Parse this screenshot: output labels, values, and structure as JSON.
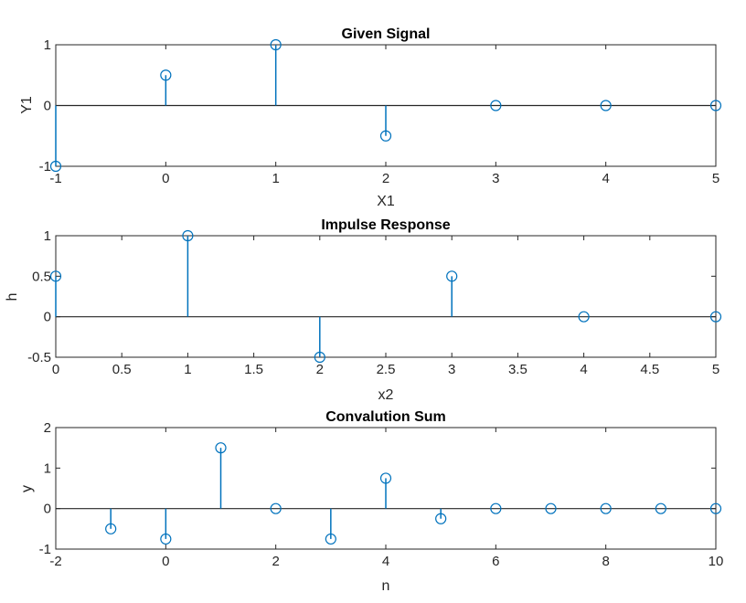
{
  "chart_data": [
    {
      "type": "stem",
      "title": "Given Signal",
      "xlabel": "X1",
      "ylabel": "Y1",
      "xlim": [
        -1,
        5
      ],
      "ylim": [
        -1,
        1
      ],
      "xticks": [
        "-1",
        "0",
        "1",
        "2",
        "3",
        "4",
        "5"
      ],
      "yticks": [
        "-1",
        "0",
        "1"
      ],
      "x": [
        -1,
        0,
        1,
        2,
        3,
        4,
        5
      ],
      "y": [
        -1,
        0.5,
        1,
        -0.5,
        0,
        0,
        0
      ],
      "color": "#0072BD"
    },
    {
      "type": "stem",
      "title": "Impulse Response",
      "xlabel": "x2",
      "ylabel": "h",
      "xlim": [
        0,
        5
      ],
      "ylim": [
        -0.5,
        1
      ],
      "xticks": [
        "0",
        "0.5",
        "1",
        "1.5",
        "2",
        "2.5",
        "3",
        "3.5",
        "4",
        "4.5",
        "5"
      ],
      "yticks": [
        "-0.5",
        "0",
        "0.5",
        "1"
      ],
      "x": [
        0,
        1,
        2,
        3,
        4,
        5
      ],
      "y": [
        0.5,
        1,
        -0.5,
        0.5,
        0,
        0
      ],
      "color": "#0072BD"
    },
    {
      "type": "stem",
      "title": "Convalution Sum",
      "xlabel": "n",
      "ylabel": "y",
      "xlim": [
        -2,
        10
      ],
      "ylim": [
        -1,
        2
      ],
      "xticks": [
        "-2",
        "0",
        "2",
        "4",
        "6",
        "8",
        "10"
      ],
      "yticks": [
        "-1",
        "0",
        "1",
        "2"
      ],
      "x": [
        -1,
        0,
        1,
        2,
        3,
        4,
        5,
        6,
        7,
        8,
        9,
        10
      ],
      "y": [
        -0.5,
        -0.75,
        1.5,
        0,
        -0.75,
        0.75,
        -0.25,
        0,
        0,
        0,
        0,
        0
      ],
      "color": "#0072BD"
    }
  ]
}
